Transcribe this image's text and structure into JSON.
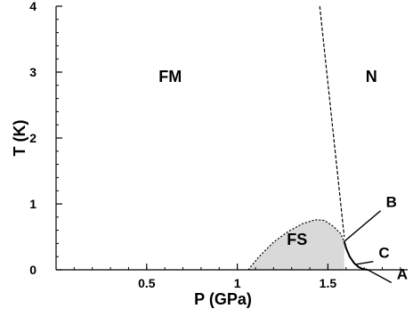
{
  "chart_data": {
    "type": "line",
    "xlabel": "P (GPa)",
    "ylabel": "T (K)",
    "xlim": [
      0,
      1.94
    ],
    "ylim": [
      0,
      4
    ],
    "x_ticks": [
      {
        "value": 0,
        "label": "0"
      },
      {
        "value": 0.5,
        "label": "0.5"
      },
      {
        "value": 1,
        "label": "1"
      },
      {
        "value": 1.5,
        "label": "1.5"
      }
    ],
    "y_ticks": [
      {
        "value": 0,
        "label": "0"
      },
      {
        "value": 1,
        "label": "1"
      },
      {
        "value": 2,
        "label": "2"
      },
      {
        "value": 3,
        "label": "3"
      },
      {
        "value": 4,
        "label": "4"
      }
    ],
    "grid": false,
    "colors": {
      "fs_fill": "#d9d9d9",
      "line": "#000000"
    },
    "region_labels": [
      {
        "text": "FM",
        "x": 0.63,
        "y": 2.85
      },
      {
        "text": "N",
        "x": 1.74,
        "y": 2.85
      },
      {
        "text": "FS",
        "x": 1.33,
        "y": 0.38
      }
    ],
    "series": [
      {
        "style": "dashed",
        "x": [
          1.455,
          1.59
        ],
        "y": [
          4.0,
          0.5
        ]
      },
      {
        "style": "dotted",
        "fill": true,
        "x": [
          1.06,
          1.12,
          1.2,
          1.28,
          1.36,
          1.43,
          1.48,
          1.53,
          1.57,
          1.59
        ],
        "y": [
          0.0,
          0.2,
          0.42,
          0.58,
          0.7,
          0.76,
          0.75,
          0.66,
          0.55,
          0.43
        ]
      },
      {
        "style": "solid",
        "x": [
          1.59,
          1.6,
          1.62,
          1.645,
          1.67,
          1.695,
          1.72
        ],
        "y": [
          0.43,
          0.33,
          0.2,
          0.1,
          0.04,
          0.01,
          0.0
        ]
      }
    ],
    "annotations": [
      {
        "text": "B",
        "x": 1.82,
        "y": 0.95,
        "point_x": 1.59,
        "point_y": 0.43
      },
      {
        "text": "C",
        "x": 1.78,
        "y": 0.18,
        "point_x": 1.65,
        "point_y": 0.08
      },
      {
        "text": "A",
        "x": 1.88,
        "y": -0.14,
        "point_x": 1.72,
        "point_y": 0.0
      }
    ]
  }
}
